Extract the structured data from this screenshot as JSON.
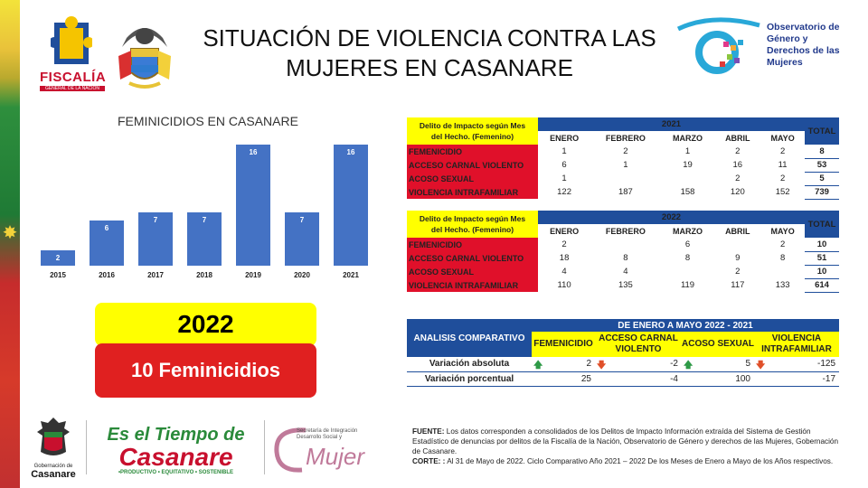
{
  "header": {
    "title_line1": "SITUACIÓN DE VIOLENCIA CONTRA LAS",
    "title_line2": "MUJERES EN CASANARE",
    "fiscalia": "FISCALÍA",
    "fiscalia_sub": "GENERAL DE LA NACIÓN",
    "observatorio": [
      "Observatorio de",
      "Género y",
      "Derechos de las",
      "Mujeres"
    ]
  },
  "chart_data": {
    "type": "bar",
    "title": "FEMINICIDIOS EN CASANARE",
    "categories": [
      "2015",
      "2016",
      "2017",
      "2018",
      "2019",
      "2020",
      "2021"
    ],
    "values": [
      2,
      6,
      7,
      7,
      16,
      7,
      16
    ],
    "ylim": [
      0,
      16
    ],
    "color": "#4472c4"
  },
  "highlight": {
    "year": "2022",
    "text": "10 Feminicidios"
  },
  "table2021": {
    "header_label": [
      "Delito de Impacto según Mes",
      "del Hecho. (Femenino)"
    ],
    "year": "2021",
    "total_label": "TOTAL",
    "months": [
      "ENERO",
      "FEBRERO",
      "MARZO",
      "ABRIL",
      "MAYO"
    ],
    "rows": [
      {
        "label": "FEMENICIDIO",
        "values": [
          "1",
          "2",
          "1",
          "2",
          "2"
        ],
        "total": "8"
      },
      {
        "label": "ACCESO CARNAL VIOLENTO",
        "values": [
          "6",
          "1",
          "19",
          "16",
          "11"
        ],
        "total": "53"
      },
      {
        "label": "ACOSO SEXUAL",
        "values": [
          "1",
          "",
          "",
          "2",
          "2"
        ],
        "total": "5"
      },
      {
        "label": "VIOLENCIA INTRAFAMILIAR",
        "values": [
          "122",
          "187",
          "158",
          "120",
          "152"
        ],
        "total": "739"
      }
    ]
  },
  "table2022": {
    "header_label": [
      "Delito de Impacto según Mes",
      "del Hecho. (Femenino)"
    ],
    "year": "2022",
    "total_label": "TOTAL",
    "months": [
      "ENERO",
      "FEBRERO",
      "MARZO",
      "ABRIL",
      "MAYO"
    ],
    "rows": [
      {
        "label": "FEMENICIDIO",
        "values": [
          "2",
          "",
          "6",
          "",
          "2"
        ],
        "total": "10"
      },
      {
        "label": "ACCESO CARNAL VIOLENTO",
        "values": [
          "18",
          "8",
          "8",
          "9",
          "8"
        ],
        "total": "51"
      },
      {
        "label": "ACOSO SEXUAL",
        "values": [
          "4",
          "4",
          "",
          "2",
          ""
        ],
        "total": "10"
      },
      {
        "label": "VIOLENCIA INTRAFAMILIAR",
        "values": [
          "110",
          "135",
          "119",
          "117",
          "133"
        ],
        "total": "614"
      }
    ]
  },
  "comparativo": {
    "title": "ANALISIS COMPARATIVO",
    "period": "DE ENERO A MAYO 2022 - 2021",
    "cols": [
      "FEMENICIDIO",
      "ACCESO CARNAL VIOLENTO",
      "ACOSO SEXUAL",
      "VIOLENCIA INTRAFAMILIAR"
    ],
    "abs_label": "Variación absoluta",
    "abs_values": [
      "2",
      "-2",
      "5",
      "-125"
    ],
    "pct_label": "Variación porcentual",
    "pct_values": [
      "25",
      "-4",
      "100",
      "-17"
    ],
    "arrow_up": "🡅",
    "arrow_down": "🡇"
  },
  "footnote": {
    "fuente_label": "FUENTE:",
    "fuente_text": " Los datos corresponden a consolidados de los Delitos de Impacto Información extraída del Sistema de Gestión Estadístico de denuncias por delitos de la Fiscalía de la Nación, Observatorio de Género y derechos de las Mujeres, Gobernación de Casanare.",
    "corte_label": "CORTE: :",
    "corte_text": "  Al 31 de Mayo de 2022. Ciclo Comparativo Año 2021 – 2022 De los Meses de Enero a Mayo de los Años respectivos."
  },
  "bottom": {
    "gob": [
      "Gobernación de",
      "Casanare"
    ],
    "tiempo_line1": "Es el Tiempo de",
    "tiempo_line2": "Casanare",
    "tiempo_sub": "•PRODUCTIVO • EQUITATIVO • SOSTENIBLE",
    "secretaria": [
      "Secretaría de Integración",
      "Desarrollo Social y"
    ],
    "mujer": "Mujer"
  }
}
